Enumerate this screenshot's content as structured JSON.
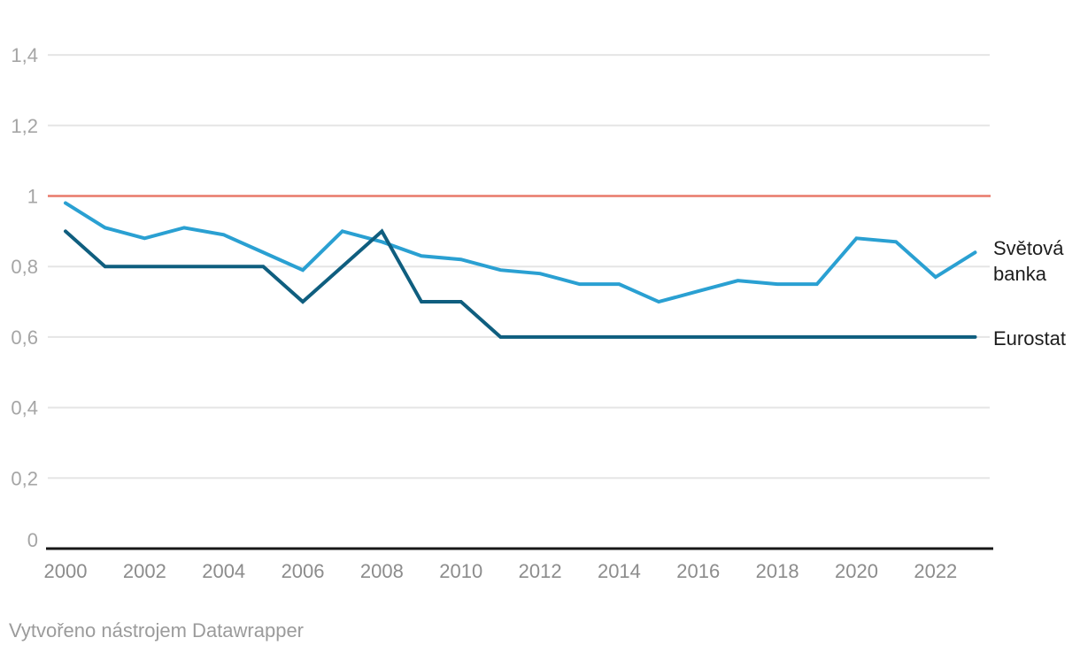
{
  "footer": {
    "attribution": "Vytvořeno nástrojem Datawrapper"
  },
  "chart_data": {
    "type": "line",
    "x": [
      2000,
      2001,
      2002,
      2003,
      2004,
      2005,
      2006,
      2007,
      2008,
      2009,
      2010,
      2011,
      2012,
      2013,
      2014,
      2015,
      2016,
      2017,
      2018,
      2019,
      2020,
      2021,
      2022,
      2023
    ],
    "series": [
      {
        "name": "Světová banka",
        "label_lines": [
          "Světová",
          "banka"
        ],
        "color": "#2aa0d2",
        "values": [
          0.98,
          0.91,
          0.88,
          0.91,
          0.89,
          0.84,
          0.79,
          0.9,
          0.87,
          0.83,
          0.82,
          0.79,
          0.78,
          0.75,
          0.75,
          0.7,
          0.73,
          0.76,
          0.75,
          0.75,
          0.88,
          0.87,
          0.77,
          0.84
        ]
      },
      {
        "name": "Eurostat",
        "label_lines": [
          "Eurostat"
        ],
        "color": "#0f5e7f",
        "values": [
          0.9,
          0.8,
          0.8,
          0.8,
          0.8,
          0.8,
          0.7,
          0.8,
          0.9,
          0.7,
          0.7,
          0.6,
          0.6,
          0.6,
          0.6,
          0.6,
          0.6,
          0.6,
          0.6,
          0.6,
          0.6,
          0.6,
          0.6,
          0.6
        ]
      }
    ],
    "reference_line": {
      "value": 1,
      "color": "#e8796a"
    },
    "yticks": [
      {
        "value": 0,
        "label": "0"
      },
      {
        "value": 0.2,
        "label": "0,2"
      },
      {
        "value": 0.4,
        "label": "0,4"
      },
      {
        "value": 0.6,
        "label": "0,6"
      },
      {
        "value": 0.8,
        "label": "0,8"
      },
      {
        "value": 1,
        "label": "1"
      },
      {
        "value": 1.2,
        "label": "1,2"
      },
      {
        "value": 1.4,
        "label": "1,4"
      }
    ],
    "xticks": [
      {
        "value": 2000,
        "label": "2000"
      },
      {
        "value": 2002,
        "label": "2002"
      },
      {
        "value": 2004,
        "label": "2004"
      },
      {
        "value": 2006,
        "label": "2006"
      },
      {
        "value": 2008,
        "label": "2008"
      },
      {
        "value": 2010,
        "label": "2010"
      },
      {
        "value": 2012,
        "label": "2012"
      },
      {
        "value": 2014,
        "label": "2014"
      },
      {
        "value": 2016,
        "label": "2016"
      },
      {
        "value": 2018,
        "label": "2018"
      },
      {
        "value": 2020,
        "label": "2020"
      },
      {
        "value": 2022,
        "label": "2022"
      }
    ],
    "ylim": [
      0,
      1.4
    ],
    "xlim": [
      2000,
      2023
    ],
    "grid": "horizontal",
    "legend_position": "direct-labels-right",
    "colors": {
      "gridline": "#e5e5e5",
      "axis_line": "#171717",
      "y_tick_label": "#a5a5a5",
      "x_tick_label": "#8c8c8c",
      "series_label_text": "#1d1d1d"
    }
  }
}
